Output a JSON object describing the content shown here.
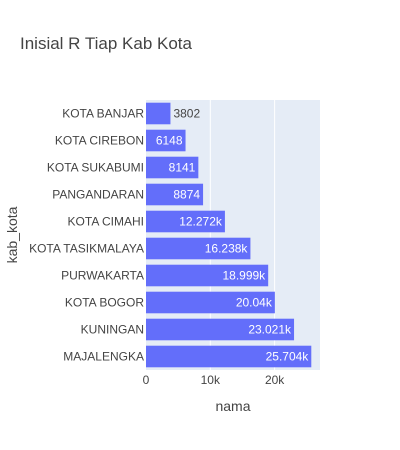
{
  "chart_data": {
    "type": "bar",
    "orientation": "horizontal",
    "title": "Inisial R Tiap Kab Kota",
    "xlabel": "nama",
    "ylabel": "kab_kota",
    "categories": [
      "KOTA BANJAR",
      "KOTA CIREBON",
      "KOTA SUKABUMI",
      "PANGANDARAN",
      "KOTA CIMAHI",
      "KOTA TASIKMALAYA",
      "PURWAKARTA",
      "KOTA BOGOR",
      "KUNINGAN",
      "MAJALENGKA"
    ],
    "values": [
      3802,
      6148,
      8141,
      8874,
      12272,
      16238,
      18999,
      20040,
      23021,
      25704
    ],
    "value_labels": [
      "3802",
      "6148",
      "8141",
      "8874",
      "12.272k",
      "16.238k",
      "18.999k",
      "20.04k",
      "23.021k",
      "25.704k"
    ],
    "xlim": [
      0,
      27057
    ],
    "xticks": [
      0,
      10000,
      20000
    ],
    "xtick_labels": [
      "0",
      "10k",
      "20k"
    ],
    "grid": true,
    "colors": {
      "bar": "#636efa",
      "plot_bg": "#e5ecf6",
      "grid": "#ffffff"
    }
  }
}
